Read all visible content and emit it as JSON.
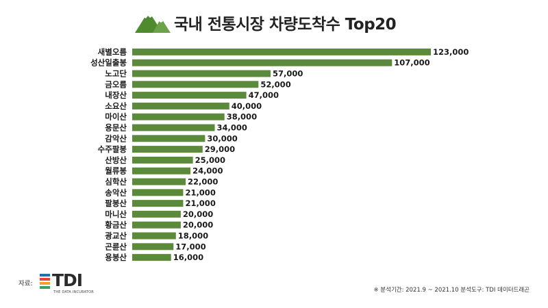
{
  "header": {
    "title": "국내 전통시장 차량도착수 Top20"
  },
  "chart_data": {
    "type": "bar",
    "orientation": "horizontal",
    "title": "국내 전통시장 차량도착수 Top20",
    "bar_color": "#5a8a3a",
    "categories": [
      "새별오름",
      "성산일출봉",
      "노고단",
      "금오름",
      "내장산",
      "소요산",
      "마이산",
      "용문산",
      "감악산",
      "수주팔봉",
      "산방산",
      "월류봉",
      "심학산",
      "송악산",
      "팔봉산",
      "마니산",
      "황금산",
      "광교산",
      "곤륜산",
      "용봉산"
    ],
    "values": [
      123000,
      107000,
      57000,
      52000,
      47000,
      40000,
      38000,
      34000,
      30000,
      29000,
      25000,
      24000,
      22000,
      21000,
      21000,
      20000,
      20000,
      18000,
      17000,
      16000
    ],
    "value_labels": [
      "123,000",
      "107,000",
      "57,000",
      "52,000",
      "47,000",
      "40,000",
      "38,000",
      "34,000",
      "30,000",
      "29,000",
      "25,000",
      "24,000",
      "22,000",
      "21,000",
      "21,000",
      "20,000",
      "20,000",
      "18,000",
      "17,000",
      "16,000"
    ],
    "xlim": [
      0,
      123000
    ],
    "grid": false,
    "legend": "none"
  },
  "footer": {
    "source_label": "자료:",
    "logo_text": "TDI",
    "logo_tagline": "THE DATA INCUBATOR",
    "logo_colors": [
      "#1f6fb5",
      "#e8423f",
      "#f2a229",
      "#3aa35b"
    ],
    "note": "※ 분석기간: 2021.9 ~ 2021.10   분석도구: TDI 데이터드래곤"
  }
}
